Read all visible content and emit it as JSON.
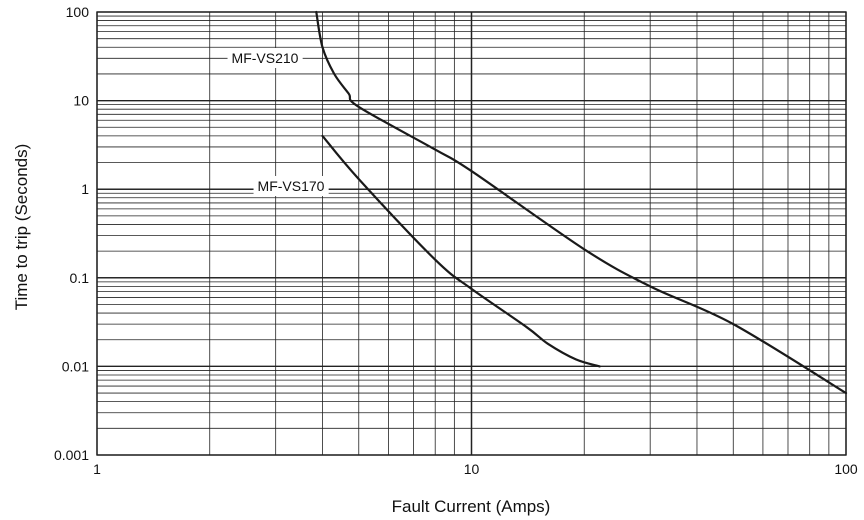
{
  "chart_data": {
    "type": "line",
    "title": "",
    "xlabel": "Fault Current (Amps)",
    "ylabel": "Time to trip (Seconds)",
    "x_scale": "log",
    "y_scale": "log",
    "xlim": [
      1,
      100
    ],
    "ylim": [
      0.001,
      100
    ],
    "grid": true,
    "x_tick_labels": [
      "1",
      "10",
      "100"
    ],
    "y_tick_labels": [
      "0.001",
      "0.01",
      "0.1",
      "1",
      "10",
      "100"
    ],
    "line_color": "#1a1a1a",
    "grid_color": "#222222",
    "series": [
      {
        "name": "MF-VS210",
        "x": [
          3.85,
          4.0,
          4.3,
          4.7,
          5.0,
          8.0,
          10.0,
          20.0,
          30.0,
          50.0,
          100.0
        ],
        "y": [
          100,
          40,
          20,
          12,
          8.5,
          2.8,
          1.6,
          0.21,
          0.08,
          0.03,
          0.005
        ]
      },
      {
        "name": "MF-VS170",
        "x": [
          4.0,
          5.0,
          8.0,
          10.0,
          14.0,
          16.0,
          19.0,
          22.0
        ],
        "y": [
          4.0,
          1.3,
          0.16,
          0.075,
          0.028,
          0.018,
          0.012,
          0.01
        ]
      }
    ]
  }
}
